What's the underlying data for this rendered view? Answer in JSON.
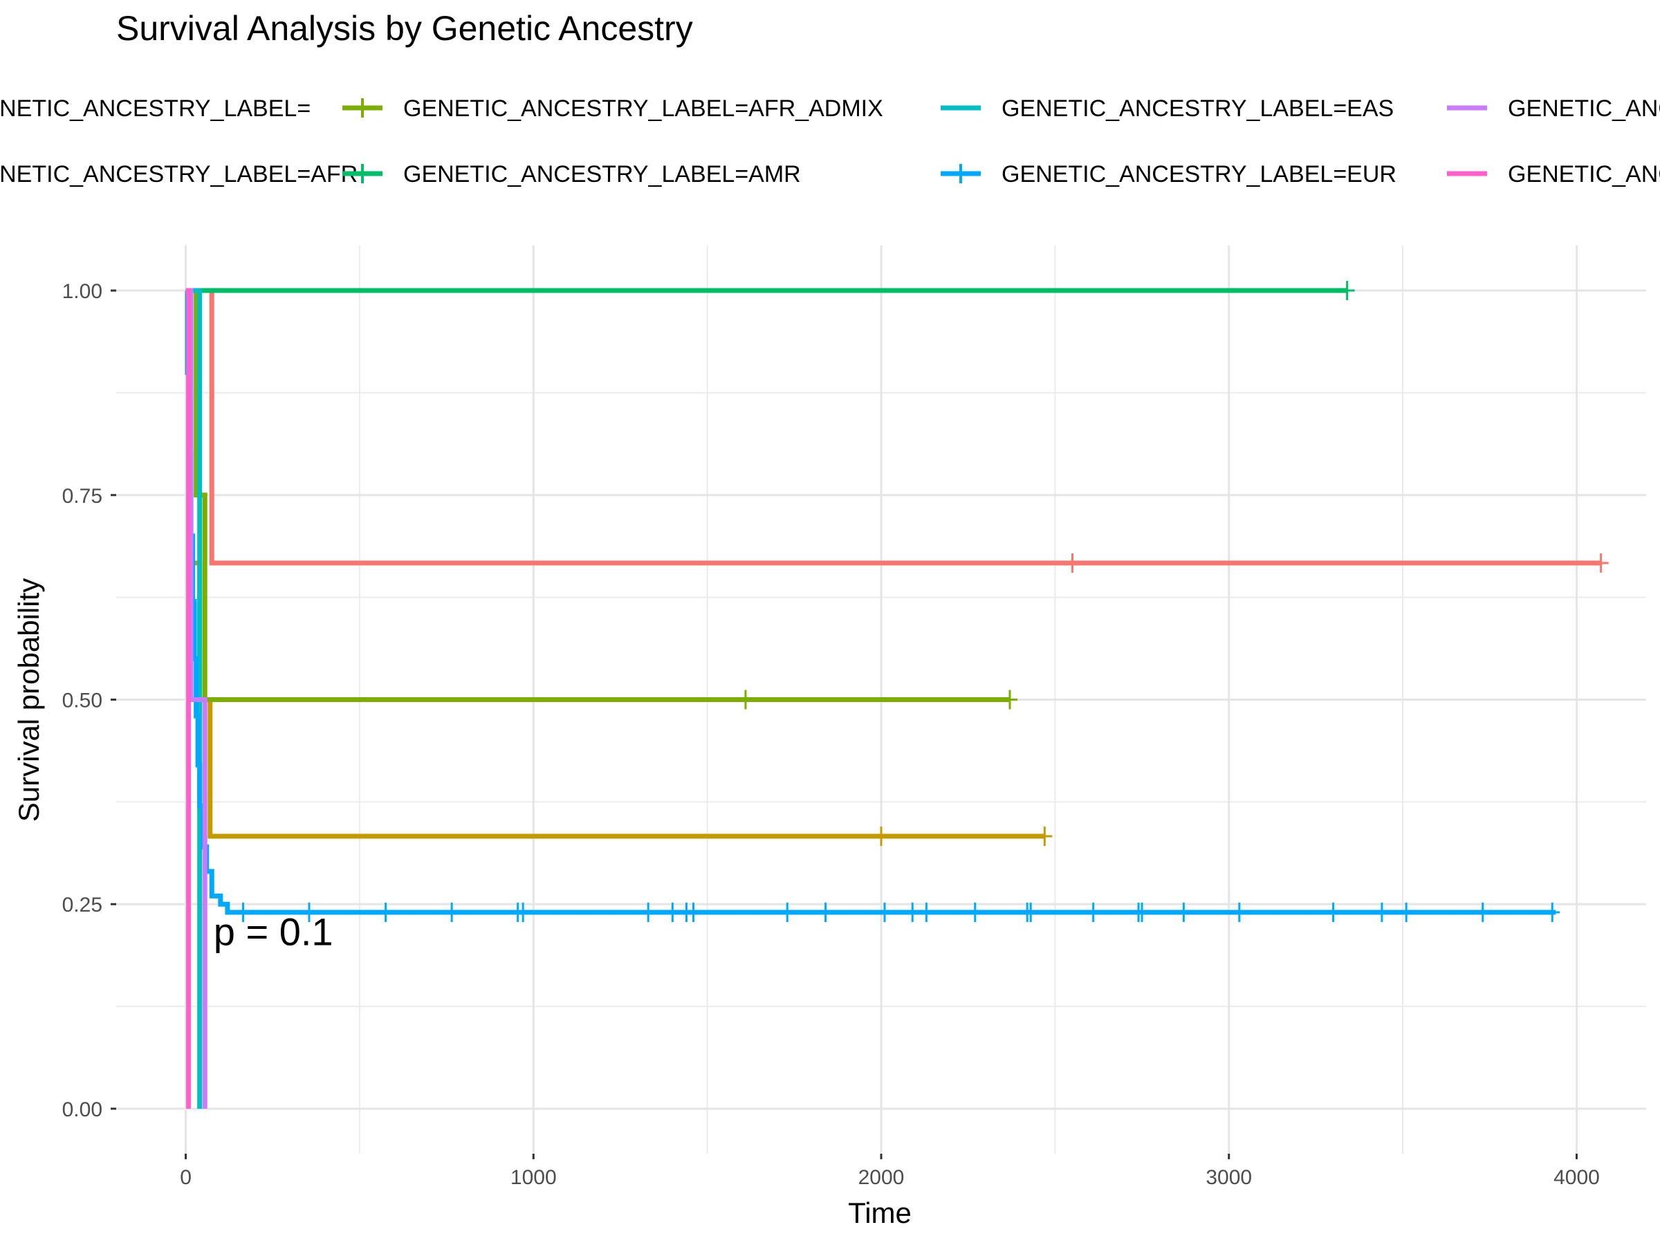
{
  "chart_data": {
    "type": "line",
    "title": "Survival Analysis by Genetic Ancestry",
    "xlabel": "Time",
    "ylabel": "Survival probability",
    "xlim": [
      -200,
      4200
    ],
    "ylim": [
      -0.055,
      1.055
    ],
    "x_ticks": [
      0,
      1000,
      2000,
      3000,
      4000
    ],
    "x_tick_labels": [
      "0",
      "1000",
      "2000",
      "3000",
      "4000"
    ],
    "y_ticks": [
      0,
      0.25,
      0.5,
      0.75,
      1.0
    ],
    "y_tick_labels": [
      "0.00",
      "0.25",
      "0.50",
      "0.75",
      "1.00"
    ],
    "grid": true,
    "legend_position": "top",
    "annotation": "p = 0.1",
    "annotation_pos": [
      80,
      0.2
    ],
    "series": [
      {
        "name": "GENETIC_ANCESTRY_LABEL=",
        "color": "#F8766D",
        "steps": [
          [
            0,
            1.0
          ],
          [
            75,
            0.667
          ],
          [
            4070,
            0.667
          ]
        ],
        "censor_x": [
          2550,
          4070
        ]
      },
      {
        "name": "GENETIC_ANCESTRY_LABEL=AFR",
        "color": "#C49A00",
        "steps": [
          [
            0,
            1.0
          ],
          [
            8,
            0.667
          ],
          [
            40,
            0.5
          ],
          [
            70,
            0.333
          ],
          [
            2470,
            0.333
          ]
        ],
        "censor_x": [
          2000,
          2470
        ]
      },
      {
        "name": "GENETIC_ANCESTRY_LABEL=AFR_ADMIX",
        "color": "#7CAE00",
        "steps": [
          [
            0,
            1.0
          ],
          [
            30,
            0.75
          ],
          [
            55,
            0.5
          ],
          [
            2370,
            0.5
          ]
        ],
        "censor_x": [
          1610,
          2370
        ]
      },
      {
        "name": "GENETIC_ANCESTRY_LABEL=AMR",
        "color": "#00BE67",
        "steps": [
          [
            0,
            1.0
          ],
          [
            3340,
            1.0
          ]
        ],
        "censor_x": [
          3340
        ]
      },
      {
        "name": "GENETIC_ANCESTRY_LABEL=EAS",
        "color": "#00BFC4",
        "steps": [
          [
            0,
            1.0
          ],
          [
            20,
            1.0
          ],
          [
            40,
            0.0
          ]
        ],
        "censor_x": []
      },
      {
        "name": "GENETIC_ANCESTRY_LABEL=EUR",
        "color": "#00A9FF",
        "steps": [
          [
            0,
            1.0
          ],
          [
            5,
            0.9
          ],
          [
            10,
            0.8
          ],
          [
            15,
            0.7
          ],
          [
            20,
            0.62
          ],
          [
            25,
            0.55
          ],
          [
            30,
            0.48
          ],
          [
            35,
            0.42
          ],
          [
            40,
            0.37
          ],
          [
            50,
            0.32
          ],
          [
            60,
            0.29
          ],
          [
            75,
            0.26
          ],
          [
            100,
            0.25
          ],
          [
            120,
            0.24
          ],
          [
            3940,
            0.24
          ]
        ],
        "censor_x": [
          165,
          355,
          575,
          765,
          955,
          970,
          1330,
          1400,
          1440,
          1460,
          1730,
          1840,
          2010,
          2090,
          2130,
          2270,
          2420,
          2430,
          2610,
          2740,
          2750,
          2870,
          3030,
          3300,
          3440,
          3510,
          3730,
          3930
        ]
      },
      {
        "name": "GENETIC_ANCESTRY_LABEL=SAS",
        "color": "#C77CFF",
        "steps": [
          [
            0,
            1.0
          ],
          [
            15,
            0.5
          ],
          [
            55,
            0.0
          ]
        ],
        "censor_x": []
      },
      {
        "name": "GENETIC_ANCESTRY_LABEL=UNK",
        "color": "#FF61CC",
        "steps": [
          [
            0,
            1.0
          ],
          [
            8,
            0.0
          ]
        ],
        "censor_x": []
      }
    ]
  }
}
